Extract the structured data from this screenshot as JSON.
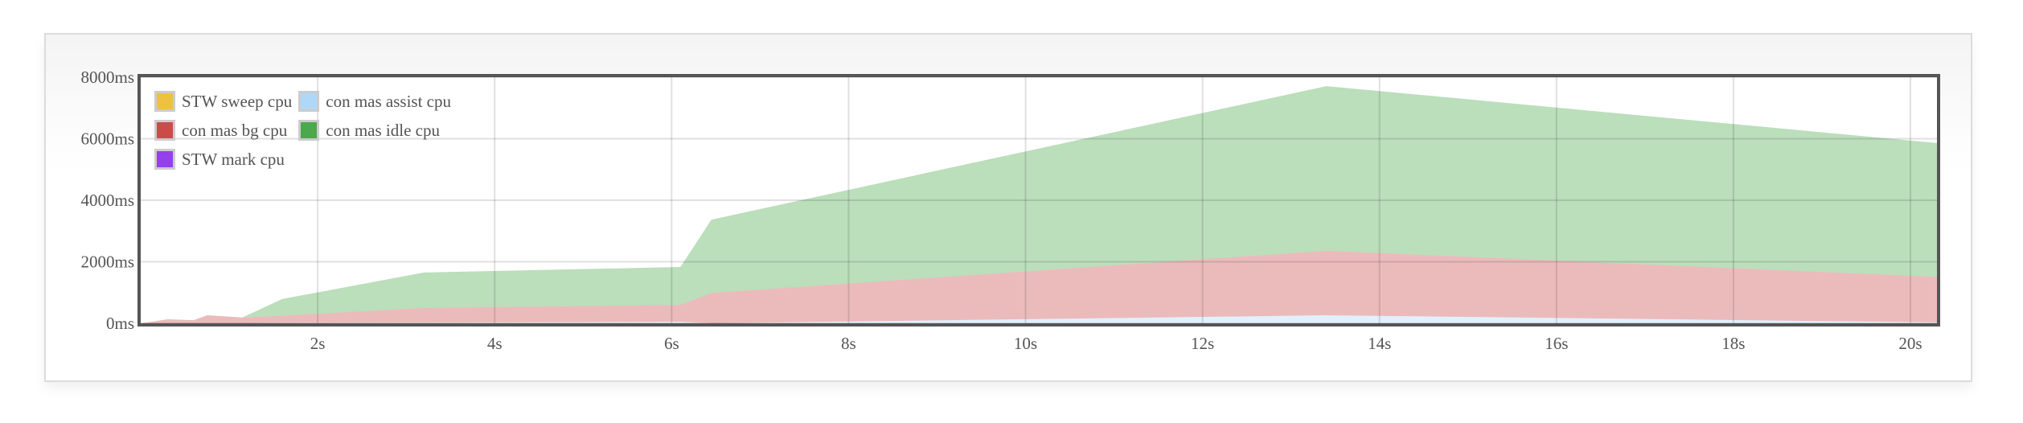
{
  "chart_data": {
    "type": "area",
    "stacked": true,
    "title": "",
    "xlabel": "",
    "ylabel": "",
    "x_unit": "s",
    "y_unit": "ms",
    "xlim": [
      0,
      20.3
    ],
    "ylim": [
      0,
      8000
    ],
    "x_ticks": [
      2,
      4,
      6,
      8,
      10,
      12,
      14,
      16,
      18,
      20
    ],
    "x_tick_labels": [
      "2s",
      "4s",
      "6s",
      "8s",
      "10s",
      "12s",
      "14s",
      "16s",
      "18s",
      "20s"
    ],
    "y_ticks": [
      0,
      2000,
      4000,
      6000,
      8000
    ],
    "y_tick_labels": [
      "0ms",
      "2000ms",
      "4000ms",
      "6000ms",
      "8000ms"
    ],
    "grid": true,
    "legend_position": "top-left",
    "x": [
      0,
      0.1,
      0.3,
      0.6,
      0.75,
      1.15,
      1.6,
      3.2,
      6.1,
      6.45,
      13.4,
      20.3
    ],
    "series": [
      {
        "name": "STW sweep cpu",
        "color": "#edc240",
        "values": [
          0,
          0,
          0,
          0,
          0,
          0,
          0,
          0,
          0,
          0,
          0,
          0
        ]
      },
      {
        "name": "con mas assist cpu",
        "color": "#afd8f8",
        "values": [
          0,
          0,
          0,
          0,
          0,
          0,
          10,
          20,
          50,
          0,
          260,
          30
        ]
      },
      {
        "name": "con mas bg cpu",
        "color": "#cb4b4b",
        "values": [
          0,
          40,
          130,
          100,
          260,
          190,
          240,
          480,
          550,
          990,
          2100,
          1480
        ]
      },
      {
        "name": "con mas idle cpu",
        "color": "#4da74d",
        "values": [
          0,
          0,
          0,
          0,
          0,
          0,
          540,
          1150,
          1230,
          2380,
          5350,
          4350
        ]
      },
      {
        "name": "STW mark cpu",
        "color": "#9440ed",
        "values": [
          0,
          0,
          0,
          0,
          0,
          0,
          0,
          0,
          0,
          0,
          0,
          0
        ]
      }
    ],
    "legend_order": [
      0,
      1,
      2,
      3,
      4
    ]
  }
}
